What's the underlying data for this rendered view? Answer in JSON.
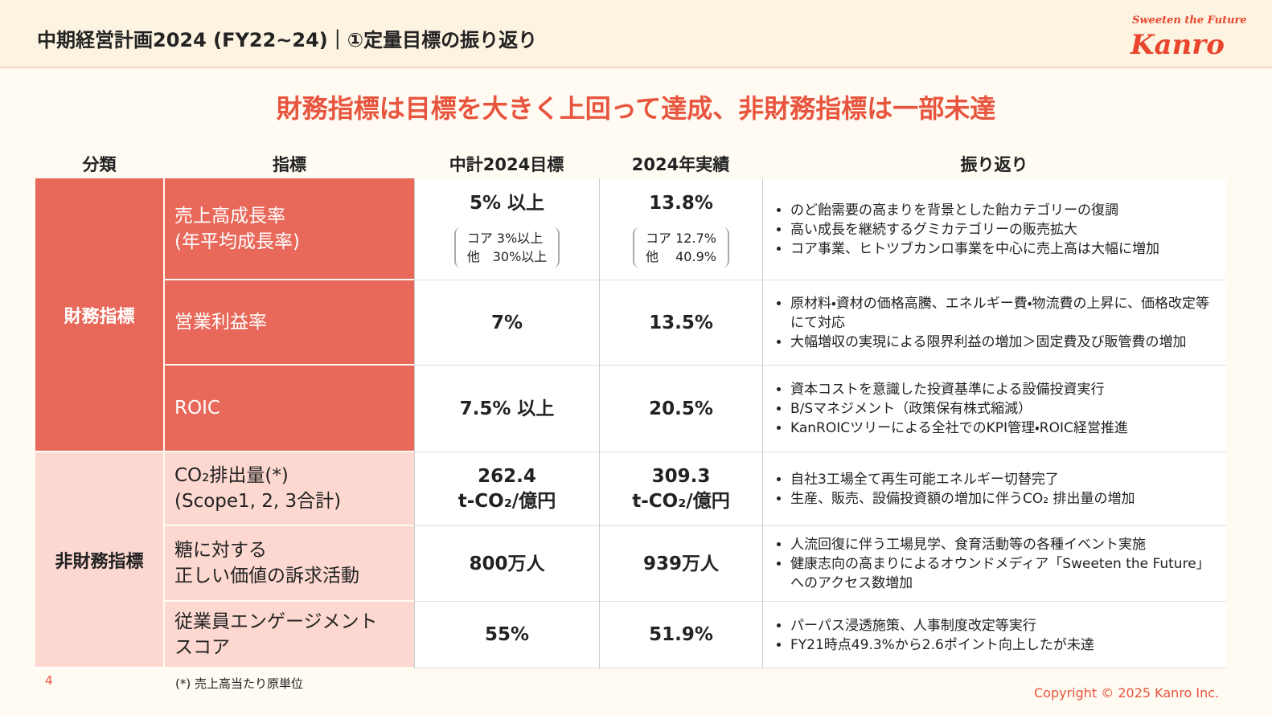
{
  "header": {
    "title": "中期経営計画2024 (FY22~24)｜①定量目標の振り返り",
    "logo_tagline": "Sweeten the Future",
    "logo": "Kanro"
  },
  "headline": "財務指標は目標を大きく上回って達成、非財務指標は一部未達",
  "table": {
    "columns": [
      "分類",
      "指標",
      "中計2024目標",
      "2024年実績",
      "振り返り"
    ],
    "groups": [
      {
        "label": "財務指標",
        "rows": [
          {
            "metric": "売上高成長率\n(年平均成長率)",
            "target": "5% 以上",
            "target_detail": [
              "コア 3%以上",
              "他　30%以上"
            ],
            "actual": "13.8%",
            "actual_detail": [
              "コア 12.7%",
              "他　 40.9%"
            ],
            "notes": [
              "のど飴需要の高まりを背景とした飴カテゴリーの復調",
              "高い成長を継続するグミカテゴリーの販売拡大",
              "コア事業、ヒトツブカンロ事業を中心に売上高は大幅に増加"
            ]
          },
          {
            "metric": "営業利益率",
            "target": "7%",
            "actual": "13.5%",
            "notes": [
              "原材料・資材の価格高騰、エネルギー費・物流費の上昇に、価格改定等にて対応",
              "大幅増収の実現による限界利益の増加＞固定費及び販管費の増加"
            ]
          },
          {
            "metric": "ROIC",
            "target": "7.5% 以上",
            "actual": "20.5%",
            "notes": [
              "資本コストを意識した投資基準による設備投資実行",
              "B/Sマネジメント（政策保有株式縮減）",
              "KanROICツリーによる全社でのKPI管理・ROIC経営推進"
            ]
          }
        ]
      },
      {
        "label": "非財務指標",
        "rows": [
          {
            "metric": "CO₂排出量(*)\n(Scope1, 2, 3合計)",
            "target": "262.4\nt-CO₂/億円",
            "actual": "309.3\nt-CO₂/億円",
            "notes": [
              "自社3工場全て再生可能エネルギー切替完了",
              "生産、販売、設備投資額の増加に伴うCO₂ 排出量の増加"
            ]
          },
          {
            "metric": "糖に対する\n正しい価値の訴求活動",
            "target": "800万人",
            "actual": "939万人",
            "notes": [
              "人流回復に伴う工場見学、食育活動等の各種イベント実施",
              "健康志向の高まりによるオウンドメディア「Sweeten the Future」へのアクセス数増加"
            ]
          },
          {
            "metric": "従業員エンゲージメント\nスコア",
            "target": "55%",
            "actual": "51.9%",
            "notes": [
              "パーパス浸透施策、人事制度改定等実行",
              "FY21時点49.3%から2.6ポイント向上したが未達"
            ]
          }
        ]
      }
    ]
  },
  "footnote": "(*) 売上高当たり原単位",
  "page_number": "4",
  "copyright": "Copyright © 2025  Kanro Inc."
}
